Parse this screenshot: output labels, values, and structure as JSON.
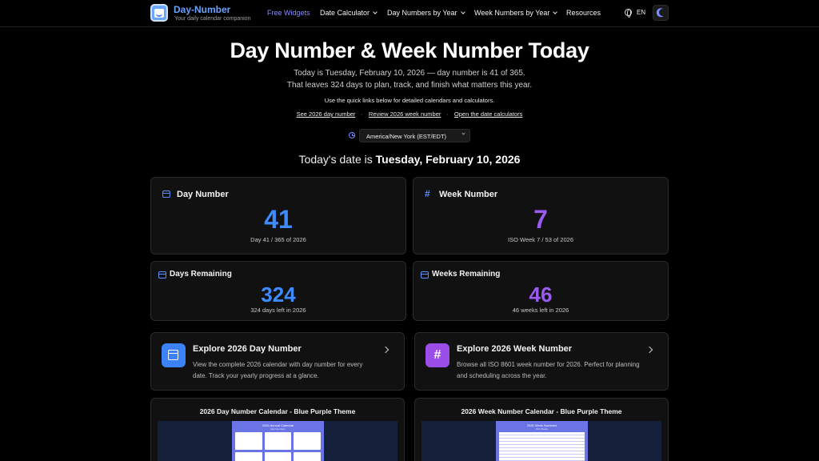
{
  "brand": {
    "title": "Day-Number",
    "tagline": "Your daily calendar companion"
  },
  "nav": {
    "free_widgets": "Free Widgets",
    "date_calculator": "Date Calculator",
    "day_numbers_by_year": "Day Numbers by Year",
    "week_numbers_by_year": "Week Numbers by Year",
    "resources": "Resources",
    "language": "EN"
  },
  "hero": {
    "title": "Day Number & Week Number Today",
    "line1": "Today is Tuesday, February 10, 2026 — day number is 41 of 365.",
    "line2": "That leaves 324 days to plan, track, and finish what matters this year.",
    "line3": "Use the quick links below for detailed calendars and calculators.",
    "links": [
      "See 2026 day number",
      "Review 2026 week number",
      "Open the date calculators"
    ],
    "separator": "·"
  },
  "timezone": {
    "selected": "America/New York (EST/EDT)"
  },
  "today": {
    "prefix": "Today's date is",
    "date": "Tuesday, February 10, 2026"
  },
  "cards": {
    "day_number": {
      "title": "Day Number",
      "value": "41",
      "meta": "Day 41 / 365 of 2026"
    },
    "week_number": {
      "title": "Week Number",
      "value": "7",
      "meta": "ISO Week 7 / 53 of 2026"
    },
    "days_remaining": {
      "title": "Days Remaining",
      "value": "324",
      "meta": "324 days left in 2026"
    },
    "weeks_remaining": {
      "title": "Weeks Remaining",
      "value": "46",
      "meta": "46 weeks left in 2026"
    }
  },
  "explore": {
    "day": {
      "title": "Explore 2026 Day Number",
      "desc": "View the complete 2026 calendar with day number for every date. Track your yearly progress at a glance."
    },
    "week": {
      "title": "Explore 2026 Week Number",
      "desc": "Browse all ISO 8601 week number for 2026. Perfect for planning and scheduling across the year."
    }
  },
  "previews": {
    "day": {
      "title": "2026 Day Number Calendar - Blue Purple Theme",
      "sheet_title": "2026 Annual Calendar",
      "sheet_sub": "Day Numbers"
    },
    "week": {
      "title": "2026 Week Number Calendar - Blue Purple Theme",
      "sheet_title": "2026 Week Numbers",
      "sheet_sub": "ISO Weeks"
    }
  },
  "colors": {
    "accent_blue": "#3d8bff",
    "accent_purple": "#9a5cf0",
    "background": "#000000"
  }
}
